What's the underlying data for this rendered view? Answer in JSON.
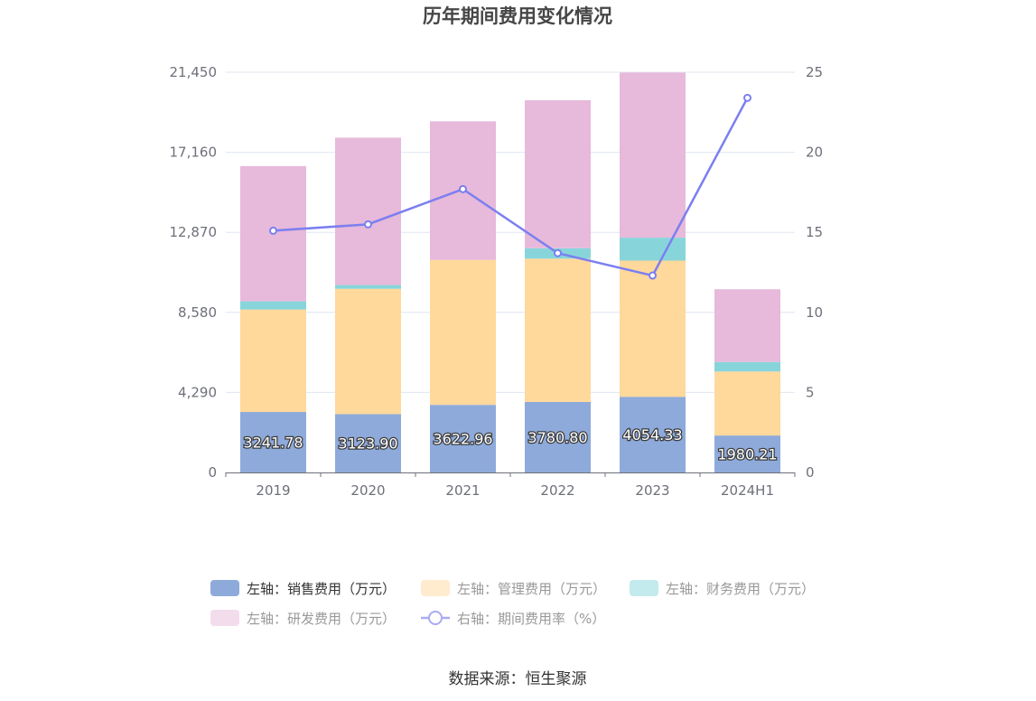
{
  "chart_data": {
    "type": "bar",
    "stacked": true,
    "title": "历年期间费用变化情况",
    "categories": [
      "2019",
      "2020",
      "2021",
      "2022",
      "2023",
      "2024H1"
    ],
    "y_left": {
      "ticks": [
        "0",
        "4,290",
        "8,580",
        "12,870",
        "17,160",
        "21,450"
      ],
      "ylim": [
        0,
        21450
      ]
    },
    "y_right": {
      "ticks": [
        "0",
        "5",
        "10",
        "15",
        "20",
        "25"
      ],
      "ylim": [
        0,
        25
      ]
    },
    "grid": true,
    "legend_position": "bottom",
    "series": [
      {
        "name": "左轴：销售费用（万元）",
        "axis": "left",
        "color": "#8eaadb",
        "values": [
          3241.78,
          3123.9,
          3622.96,
          3780.8,
          4054.33,
          1980.21
        ],
        "labels": [
          "3241.78",
          "3123.90",
          "3622.96",
          "3780.80",
          "4054.33",
          "1980.21"
        ]
      },
      {
        "name": "左轴：管理费用（万元）",
        "axis": "left",
        "color": "#ffd89b",
        "values": [
          5490,
          6720,
          7770,
          7680,
          7300,
          3430
        ]
      },
      {
        "name": "左轴：财务费用（万元）",
        "axis": "left",
        "color": "#87d5da",
        "values": [
          440,
          200,
          0,
          560,
          1230,
          510
        ]
      },
      {
        "name": "左轴：研发费用（万元）",
        "axis": "left",
        "color": "#e7b9da",
        "values": [
          7250,
          7900,
          7430,
          7930,
          8850,
          3900
        ]
      },
      {
        "name": "右轴：期间费用率（%）",
        "axis": "right",
        "type": "line",
        "color": "#7b7ff0",
        "values": [
          15.1,
          15.5,
          17.7,
          13.7,
          12.3,
          23.4
        ]
      }
    ]
  },
  "source": "数据来源：恒生聚源"
}
